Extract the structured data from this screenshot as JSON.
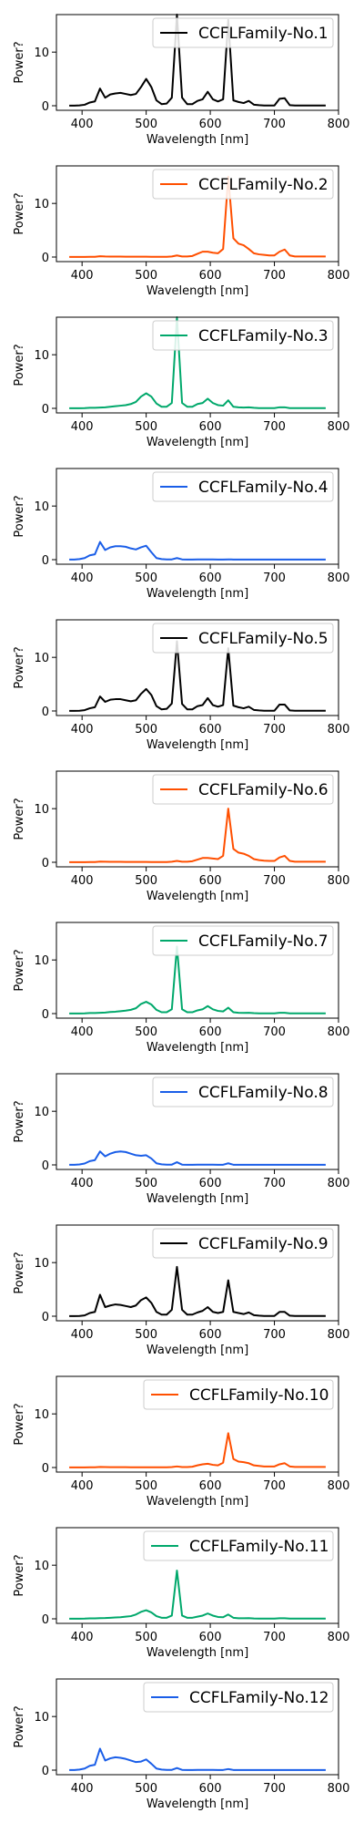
{
  "colors": [
    "#000000",
    "#ff4f00",
    "#00a86b",
    "#1a5ee8"
  ],
  "chart_data": [
    {
      "type": "line",
      "series": [
        {
          "name": "CCFLFamily-No.1",
          "color": "#000000",
          "values": [
            0.02,
            0.02,
            0.06,
            0.18,
            0.6,
            0.8,
            3.2,
            1.5,
            2.1,
            2.3,
            2.4,
            2.2,
            2.0,
            2.2,
            3.5,
            5.0,
            3.5,
            1.0,
            0.3,
            0.4,
            1.5,
            17.0,
            1.5,
            0.3,
            0.3,
            0.9,
            1.2,
            2.6,
            1.2,
            0.8,
            1.2,
            16.0,
            1.0,
            0.7,
            0.5,
            0.9,
            0.2,
            0.1,
            0.05,
            0.05,
            0.05,
            1.3,
            1.4,
            0.1,
            0.05,
            0.05,
            0.05,
            0.05,
            0.05,
            0.05,
            0.05
          ]
        }
      ]
    },
    {
      "type": "line",
      "series": [
        {
          "name": "CCFLFamily-No.2",
          "color": "#ff4f00",
          "values": [
            0.03,
            0.03,
            0.03,
            0.03,
            0.05,
            0.05,
            0.15,
            0.1,
            0.08,
            0.08,
            0.08,
            0.07,
            0.06,
            0.06,
            0.06,
            0.06,
            0.05,
            0.04,
            0.04,
            0.05,
            0.1,
            0.3,
            0.1,
            0.1,
            0.2,
            0.6,
            1.0,
            1.0,
            0.8,
            0.7,
            1.5,
            15.0,
            3.5,
            2.5,
            2.2,
            1.5,
            0.7,
            0.5,
            0.4,
            0.3,
            0.3,
            1.0,
            1.4,
            0.3,
            0.1,
            0.1,
            0.1,
            0.1,
            0.1,
            0.1,
            0.1
          ]
        }
      ]
    },
    {
      "type": "line",
      "series": [
        {
          "name": "CCFLFamily-No.3",
          "color": "#00a86b",
          "values": [
            0.02,
            0.02,
            0.03,
            0.05,
            0.1,
            0.1,
            0.15,
            0.2,
            0.3,
            0.4,
            0.5,
            0.6,
            0.8,
            1.2,
            2.2,
            2.8,
            2.2,
            0.9,
            0.3,
            0.3,
            1.0,
            17.0,
            1.0,
            0.3,
            0.3,
            0.8,
            1.0,
            1.8,
            1.0,
            0.6,
            0.5,
            1.5,
            0.3,
            0.2,
            0.15,
            0.2,
            0.1,
            0.05,
            0.05,
            0.05,
            0.05,
            0.2,
            0.2,
            0.05,
            0.05,
            0.05,
            0.05,
            0.05,
            0.05,
            0.05,
            0.05
          ]
        }
      ]
    },
    {
      "type": "line",
      "series": [
        {
          "name": "CCFLFamily-No.4",
          "color": "#1a5ee8",
          "values": [
            0.03,
            0.03,
            0.1,
            0.3,
            0.8,
            1.0,
            3.3,
            1.8,
            2.3,
            2.5,
            2.5,
            2.4,
            2.1,
            1.9,
            2.3,
            2.6,
            1.4,
            0.3,
            0.1,
            0.05,
            0.05,
            0.3,
            0.05,
            0.03,
            0.03,
            0.05,
            0.05,
            0.05,
            0.05,
            0.03,
            0.03,
            0.05,
            0.03,
            0.03,
            0.03,
            0.03,
            0.03,
            0.03,
            0.03,
            0.03,
            0.03,
            0.03,
            0.03,
            0.03,
            0.03,
            0.03,
            0.03,
            0.03,
            0.03,
            0.03,
            0.03
          ]
        }
      ]
    },
    {
      "type": "line",
      "series": [
        {
          "name": "CCFLFamily-No.5",
          "color": "#000000",
          "values": [
            0.02,
            0.02,
            0.05,
            0.15,
            0.5,
            0.7,
            2.7,
            1.7,
            2.1,
            2.2,
            2.2,
            2.0,
            1.8,
            2.0,
            3.2,
            4.1,
            3.0,
            0.9,
            0.3,
            0.4,
            1.4,
            13.0,
            1.3,
            0.3,
            0.3,
            0.9,
            1.1,
            2.4,
            1.1,
            0.8,
            1.1,
            11.7,
            1.0,
            0.7,
            0.5,
            0.8,
            0.2,
            0.1,
            0.05,
            0.05,
            0.05,
            1.2,
            1.2,
            0.1,
            0.05,
            0.05,
            0.05,
            0.05,
            0.05,
            0.05,
            0.05
          ]
        }
      ]
    },
    {
      "type": "line",
      "series": [
        {
          "name": "CCFLFamily-No.6",
          "color": "#ff4f00",
          "values": [
            0.03,
            0.03,
            0.03,
            0.03,
            0.05,
            0.05,
            0.12,
            0.1,
            0.08,
            0.08,
            0.08,
            0.07,
            0.06,
            0.06,
            0.06,
            0.06,
            0.05,
            0.04,
            0.04,
            0.05,
            0.1,
            0.25,
            0.1,
            0.1,
            0.2,
            0.5,
            0.8,
            0.8,
            0.7,
            0.6,
            1.2,
            10.0,
            2.5,
            1.8,
            1.6,
            1.2,
            0.6,
            0.4,
            0.3,
            0.25,
            0.25,
            0.9,
            1.2,
            0.25,
            0.1,
            0.1,
            0.1,
            0.1,
            0.1,
            0.1,
            0.1
          ]
        }
      ]
    },
    {
      "type": "line",
      "series": [
        {
          "name": "CCFLFamily-No.7",
          "color": "#00a86b",
          "values": [
            0.02,
            0.02,
            0.03,
            0.05,
            0.1,
            0.1,
            0.15,
            0.2,
            0.3,
            0.35,
            0.45,
            0.55,
            0.7,
            1.0,
            1.8,
            2.2,
            1.7,
            0.7,
            0.25,
            0.25,
            0.8,
            12.5,
            0.8,
            0.25,
            0.25,
            0.6,
            0.8,
            1.4,
            0.8,
            0.5,
            0.4,
            1.1,
            0.25,
            0.15,
            0.12,
            0.15,
            0.08,
            0.05,
            0.05,
            0.05,
            0.05,
            0.15,
            0.15,
            0.05,
            0.05,
            0.05,
            0.05,
            0.05,
            0.05,
            0.05,
            0.05
          ]
        }
      ]
    },
    {
      "type": "line",
      "series": [
        {
          "name": "CCFLFamily-No.8",
          "color": "#1a5ee8",
          "values": [
            0.03,
            0.03,
            0.08,
            0.25,
            0.7,
            0.9,
            2.5,
            1.6,
            2.1,
            2.4,
            2.5,
            2.4,
            2.1,
            1.8,
            1.7,
            1.8,
            1.2,
            0.3,
            0.1,
            0.05,
            0.05,
            0.5,
            0.05,
            0.03,
            0.03,
            0.05,
            0.05,
            0.05,
            0.05,
            0.03,
            0.03,
            0.3,
            0.03,
            0.03,
            0.03,
            0.03,
            0.03,
            0.03,
            0.03,
            0.03,
            0.03,
            0.03,
            0.03,
            0.03,
            0.03,
            0.03,
            0.03,
            0.03,
            0.03,
            0.03,
            0.03
          ]
        }
      ]
    },
    {
      "type": "line",
      "series": [
        {
          "name": "CCFLFamily-No.9",
          "color": "#000000",
          "values": [
            0.02,
            0.02,
            0.05,
            0.15,
            0.6,
            0.8,
            4.0,
            1.7,
            2.0,
            2.2,
            2.1,
            1.9,
            1.7,
            2.0,
            3.0,
            3.5,
            2.5,
            0.8,
            0.3,
            0.3,
            1.2,
            9.2,
            1.2,
            0.3,
            0.3,
            0.7,
            1.0,
            1.7,
            0.8,
            0.6,
            0.8,
            6.7,
            0.8,
            0.6,
            0.4,
            0.7,
            0.2,
            0.1,
            0.05,
            0.05,
            0.05,
            0.8,
            0.8,
            0.1,
            0.05,
            0.05,
            0.05,
            0.05,
            0.05,
            0.05,
            0.05
          ]
        }
      ]
    },
    {
      "type": "line",
      "series": [
        {
          "name": "CCFLFamily-No.10",
          "color": "#ff4f00",
          "values": [
            0.03,
            0.03,
            0.03,
            0.03,
            0.05,
            0.05,
            0.1,
            0.08,
            0.07,
            0.07,
            0.07,
            0.06,
            0.05,
            0.05,
            0.05,
            0.05,
            0.05,
            0.04,
            0.04,
            0.05,
            0.08,
            0.2,
            0.08,
            0.08,
            0.15,
            0.4,
            0.6,
            0.7,
            0.5,
            0.4,
            0.9,
            6.4,
            1.6,
            1.1,
            1.0,
            0.8,
            0.4,
            0.3,
            0.2,
            0.2,
            0.2,
            0.6,
            0.8,
            0.2,
            0.1,
            0.1,
            0.1,
            0.1,
            0.1,
            0.1,
            0.1
          ]
        }
      ]
    },
    {
      "type": "line",
      "series": [
        {
          "name": "CCFLFamily-No.11",
          "color": "#00a86b",
          "values": [
            0.02,
            0.02,
            0.03,
            0.04,
            0.08,
            0.08,
            0.12,
            0.15,
            0.2,
            0.25,
            0.3,
            0.4,
            0.5,
            0.8,
            1.3,
            1.6,
            1.2,
            0.5,
            0.2,
            0.2,
            0.6,
            9.0,
            0.6,
            0.2,
            0.2,
            0.4,
            0.6,
            1.0,
            0.6,
            0.35,
            0.3,
            0.8,
            0.2,
            0.1,
            0.1,
            0.12,
            0.06,
            0.04,
            0.04,
            0.04,
            0.04,
            0.1,
            0.1,
            0.04,
            0.04,
            0.04,
            0.04,
            0.04,
            0.04,
            0.04,
            0.04
          ]
        }
      ]
    },
    {
      "type": "line",
      "series": [
        {
          "name": "CCFLFamily-No.12",
          "color": "#1a5ee8",
          "values": [
            0.03,
            0.03,
            0.1,
            0.3,
            0.8,
            1.0,
            4.0,
            1.8,
            2.2,
            2.4,
            2.3,
            2.1,
            1.8,
            1.5,
            1.6,
            2.0,
            1.2,
            0.3,
            0.1,
            0.05,
            0.05,
            0.4,
            0.05,
            0.03,
            0.03,
            0.05,
            0.05,
            0.05,
            0.05,
            0.03,
            0.03,
            0.2,
            0.03,
            0.03,
            0.03,
            0.03,
            0.03,
            0.03,
            0.03,
            0.03,
            0.03,
            0.03,
            0.03,
            0.03,
            0.03,
            0.03,
            0.03,
            0.03,
            0.03,
            0.03,
            0.03
          ]
        }
      ]
    }
  ],
  "shared": {
    "x": [
      380,
      388,
      396,
      404,
      412,
      420,
      428,
      436,
      444,
      452,
      460,
      468,
      476,
      484,
      492,
      500,
      508,
      516,
      524,
      532,
      540,
      548,
      556,
      564,
      572,
      580,
      588,
      596,
      604,
      612,
      620,
      628,
      636,
      644,
      652,
      660,
      668,
      676,
      684,
      692,
      700,
      708,
      716,
      724,
      732,
      740,
      748,
      756,
      764,
      772,
      780
    ],
    "xlabel": "Wavelength [nm]",
    "ylabel": "Power?",
    "xticks": [
      400,
      500,
      600,
      700,
      800
    ],
    "yticks": [
      0,
      10
    ],
    "xlim": [
      360,
      800
    ],
    "ylim": [
      -0.85,
      17
    ],
    "grid": false,
    "legend_position": "top-right"
  }
}
